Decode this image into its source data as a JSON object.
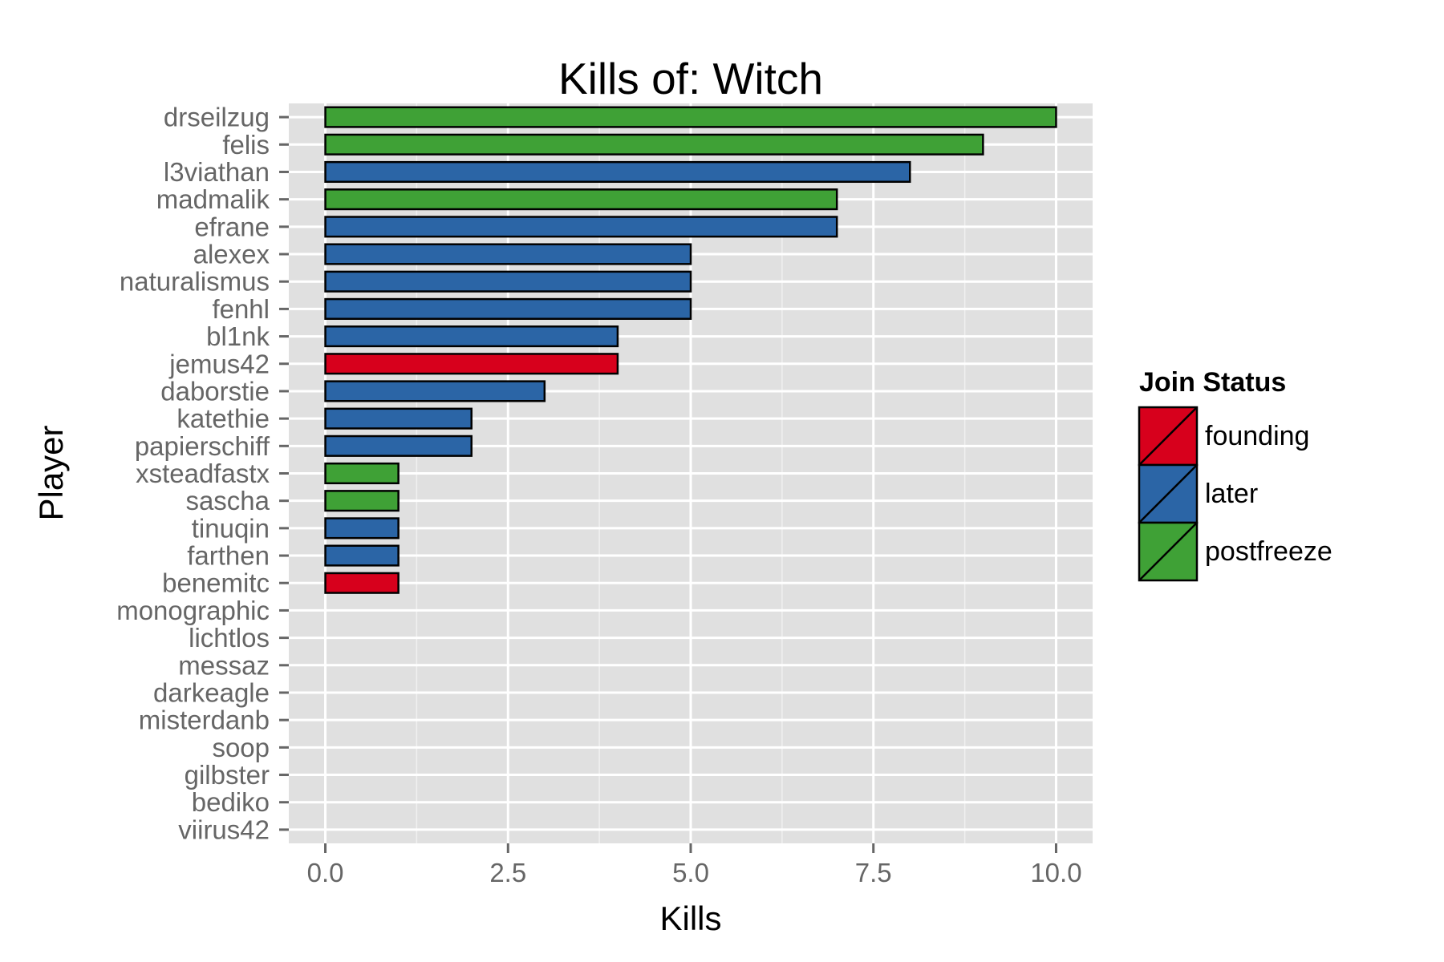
{
  "chart_data": {
    "type": "bar",
    "orientation": "horizontal",
    "title": "Kills of: Witch",
    "xlabel": "Kills",
    "ylabel": "Player",
    "xlim": [
      -0.5,
      10.5
    ],
    "xticks": [
      "0.0",
      "2.5",
      "5.0",
      "7.5",
      "10.0"
    ],
    "grid": true,
    "legend_position": "right",
    "legend_title": "Join Status",
    "legend": [
      {
        "name": "founding",
        "color": "#d7001c"
      },
      {
        "name": "later",
        "color": "#2b65a6"
      },
      {
        "name": "postfreeze",
        "color": "#3fa136"
      }
    ],
    "categories": [
      "drseilzug",
      "felis",
      "l3viathan",
      "madmalik",
      "efrane",
      "alexex",
      "naturalismus",
      "fenhl",
      "bl1nk",
      "jemus42",
      "daborstie",
      "katethie",
      "papierschiff",
      "xsteadfastx",
      "sascha",
      "tinuqin",
      "farthen",
      "benemitc",
      "monographic",
      "lichtlos",
      "messaz",
      "darkeagle",
      "misterdanb",
      "soop",
      "gilbster",
      "bediko",
      "viirus42"
    ],
    "values": [
      10,
      9,
      8,
      7,
      7,
      5,
      5,
      5,
      4,
      4,
      3,
      2,
      2,
      1,
      1,
      1,
      1,
      1,
      0,
      0,
      0,
      0,
      0,
      0,
      0,
      0,
      0
    ],
    "status": [
      "postfreeze",
      "postfreeze",
      "later",
      "postfreeze",
      "later",
      "later",
      "later",
      "later",
      "later",
      "founding",
      "later",
      "later",
      "later",
      "postfreeze",
      "postfreeze",
      "later",
      "later",
      "founding",
      "later",
      "later",
      "later",
      "later",
      "later",
      "later",
      "later",
      "later",
      "later"
    ]
  }
}
